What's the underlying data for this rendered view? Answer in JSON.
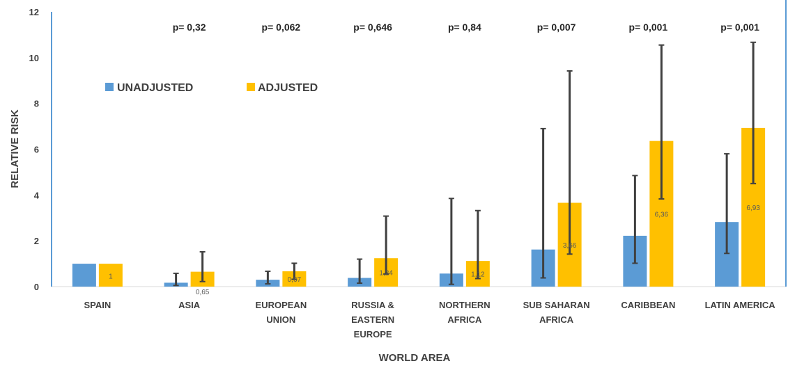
{
  "chart_data": {
    "type": "bar",
    "title": "",
    "xlabel": "WORLD AREA",
    "ylabel": "RELATIVE RISK",
    "ylim": [
      0,
      12
    ],
    "yticks": [
      "0",
      "2",
      "4",
      "6",
      "8",
      "10",
      "12"
    ],
    "legend_position": "top-left",
    "categories": [
      [
        "SPAIN"
      ],
      [
        "ASIA"
      ],
      [
        "EUROPEAN",
        "UNION"
      ],
      [
        "RUSSIA &",
        "EASTERN",
        "EUROPE"
      ],
      [
        "NORTHERN",
        "AFRICA"
      ],
      [
        "SUB SAHARAN",
        "AFRICA"
      ],
      [
        "CARIBBEAN"
      ],
      [
        "LATIN AMERICA"
      ]
    ],
    "p_values": [
      "",
      "p= 0,32",
      "p= 0,062",
      "p= 0,646",
      "p= 0,84",
      "p= 0,007",
      "p= 0,001",
      "p= 0,001"
    ],
    "series": [
      {
        "name": "UNADJUSTED",
        "color": "#5b9bd5",
        "values": [
          1,
          0.17,
          0.3,
          0.38,
          0.57,
          1.62,
          2.22,
          2.82
        ],
        "err_low": [
          null,
          0.05,
          0.12,
          0.15,
          0.1,
          0.38,
          1.02,
          1.45
        ],
        "err_high": [
          null,
          0.58,
          0.67,
          1.2,
          3.85,
          6.9,
          4.85,
          5.8
        ],
        "labels": [
          "",
          "",
          "",
          "",
          "",
          "",
          "",
          ""
        ]
      },
      {
        "name": "ADJUSTED",
        "color": "#ffc000",
        "values": [
          1,
          0.65,
          0.67,
          1.24,
          1.12,
          3.66,
          6.36,
          6.93
        ],
        "err_low": [
          null,
          0.22,
          0.32,
          0.55,
          0.35,
          1.42,
          3.83,
          4.5
        ],
        "err_high": [
          null,
          1.52,
          1.02,
          3.08,
          3.32,
          9.42,
          10.55,
          10.67
        ],
        "labels": [
          "1",
          "0,65",
          "0,67",
          "1,24",
          "1,12",
          "3,66",
          "6,36",
          "6,93"
        ]
      }
    ]
  }
}
